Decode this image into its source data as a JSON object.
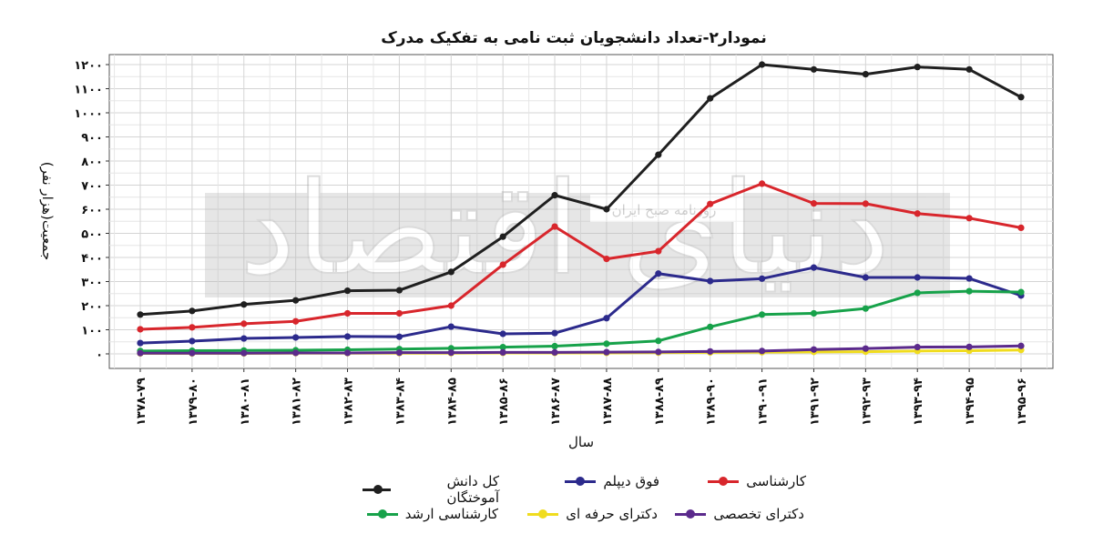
{
  "chart_data": {
    "type": "line",
    "title": "نمودار۲-تعداد دانشجویان ثبت نامی به تفکیک مدرک",
    "xlabel": "سال",
    "ylabel": "جمعیت(هزار نفر)",
    "ylim": [
      0,
      1200
    ],
    "yticks": [
      0,
      100,
      200,
      300,
      400,
      500,
      600,
      700,
      800,
      900,
      1000,
      1100,
      1200
    ],
    "ytick_labels": [
      "۰",
      "۱۰۰",
      "۲۰۰",
      "۳۰۰",
      "۴۰۰",
      "۵۰۰",
      "۶۰۰",
      "۷۰۰",
      "۸۰۰",
      "۹۰۰",
      "۱۰۰۰",
      "۱۱۰۰",
      "۱۲۰۰"
    ],
    "grid": true,
    "legend_position": "bottom",
    "categories": [
      "۱۳۷۸-۷۹",
      "۱۳۷۹-۸۰",
      "۱۳۸۰-۸۱",
      "۱۳۸۱-۸۲",
      "۱۳۸۲-۸۳",
      "۱۳۸۳-۸۴",
      "۱۳۸۴-۸۵",
      "۱۳۸۵-۸۶",
      "۱۳۸۶-۸۷",
      "۱۳۸۷-۸۸",
      "۱۳۸۸-۸۹",
      "۱۳۸۹-۹۰",
      "۱۳۹۰-۹۱",
      "۱۳۹۱-۹۲",
      "۱۳۹۲-۹۳",
      "۱۳۹۳-۹۴",
      "۱۳۹۴-۹۵",
      "۱۳۹۵-۹۶"
    ],
    "series": [
      {
        "name": "کل دانش آموختگان",
        "color": "#1f1f1f",
        "values": [
          163,
          178,
          205,
          222,
          262,
          264,
          340,
          486,
          658,
          600,
          826,
          1060,
          1200,
          1180,
          1160,
          1190,
          1180,
          1065
        ]
      },
      {
        "name": "فوق دیپلم",
        "color": "#2c2a8c",
        "values": [
          45,
          53,
          64,
          68,
          72,
          71,
          113,
          83,
          86,
          148,
          333,
          302,
          312,
          358,
          317,
          317,
          313,
          242
        ]
      },
      {
        "name": "کارشناسی",
        "color": "#d8262c",
        "values": [
          102,
          110,
          125,
          135,
          168,
          168,
          200,
          370,
          528,
          394,
          426,
          622,
          706,
          624,
          623,
          582,
          563,
          523
        ]
      },
      {
        "name": "کارشناسی ارشد",
        "color": "#17a24a",
        "values": [
          12,
          13,
          14,
          15,
          17,
          20,
          23,
          28,
          32,
          42,
          54,
          112,
          163,
          168,
          188,
          253,
          260,
          256
        ]
      },
      {
        "name": "دکترای حرفه ای",
        "color": "#f0dc1e",
        "values": [
          2,
          2,
          2,
          3,
          3,
          3,
          3,
          4,
          4,
          4,
          5,
          6,
          7,
          8,
          9,
          12,
          13,
          16
        ]
      },
      {
        "name": "دکترای تخصصی",
        "color": "#5b2a8c",
        "values": [
          3,
          3,
          3,
          4,
          4,
          5,
          5,
          6,
          6,
          7,
          8,
          10,
          12,
          18,
          22,
          28,
          29,
          33
        ]
      }
    ]
  },
  "watermark": {
    "big_text": "دنیای اقتصاد",
    "box_text": "روزنامه صبح ایران"
  }
}
